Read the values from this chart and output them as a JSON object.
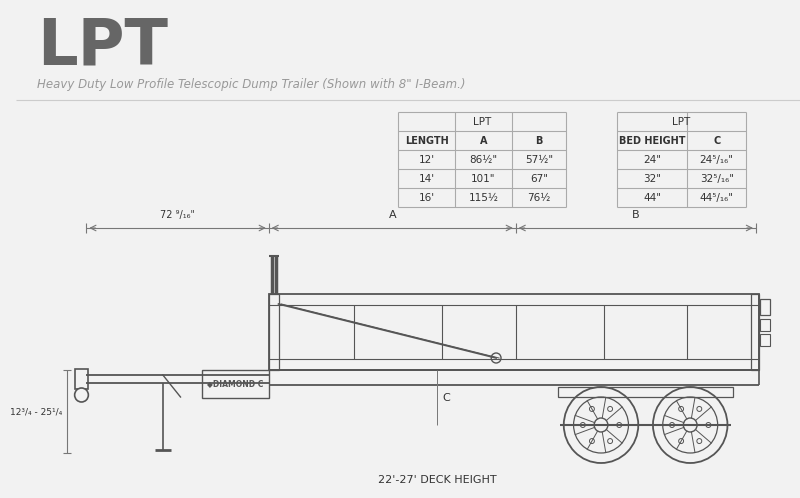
{
  "bg_color": "#f2f2f2",
  "title": "LPT",
  "subtitle": "Heavy Duty Low Profile Telescopic Dump Trailer (Shown with 8\" I-Beam.)",
  "title_color": "#666666",
  "subtitle_color": "#999999",
  "table1_header": "LPT",
  "table1_cols": [
    "LENGTH",
    "A",
    "B"
  ],
  "table1_rows": [
    [
      "12'",
      "86½\"",
      "57½\""
    ],
    [
      "14'",
      "101\"",
      "67\""
    ],
    [
      "16'",
      "115½",
      "76½"
    ]
  ],
  "table2_header": "LPT",
  "table2_cols": [
    "BED HEIGHT",
    "C"
  ],
  "table2_rows": [
    [
      "24\"",
      "24⁵/₁₆\""
    ],
    [
      "32\"",
      "32⁵/₁₆\""
    ],
    [
      "44\"",
      "44⁵/₁₆\""
    ]
  ],
  "dim_top_left": "72 ⁹/₁₆\"",
  "dim_bottom_left": "12³/₄ - 25¹/₄",
  "dim_bottom_center": "22'-27' DECK HEIGHT",
  "brand": "◆DIAMOND C",
  "line_color": "#777777",
  "trailer_color": "#555555",
  "table_line_color": "#aaaaaa",
  "text_color": "#333333"
}
